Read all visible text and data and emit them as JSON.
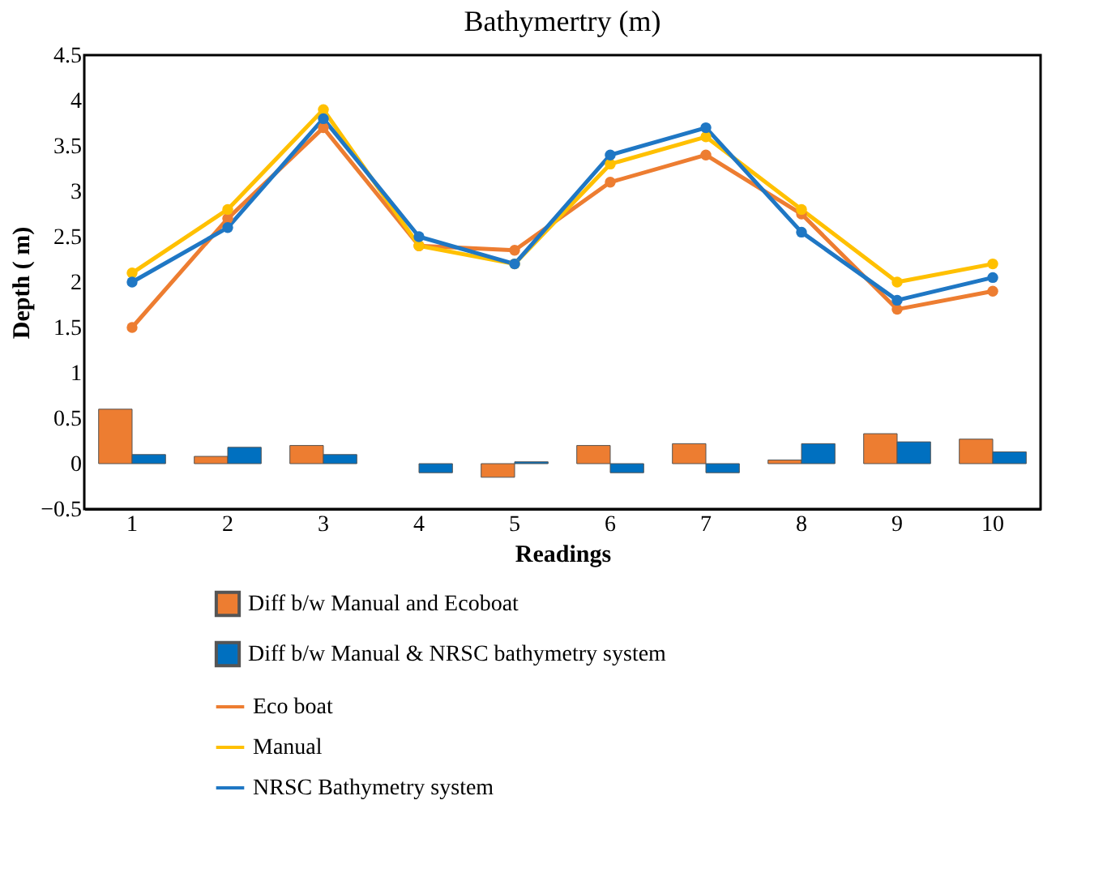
{
  "chart_data": {
    "type": "bar",
    "title": "Bathymertry (m)",
    "xlabel": "Readings",
    "ylabel": "Depth ( m)",
    "categories": [
      "1",
      "2",
      "3",
      "4",
      "5",
      "6",
      "7",
      "8",
      "9",
      "10"
    ],
    "series": [
      {
        "name": "Diff b/w Manual and Ecoboat",
        "color": "#ed7d31",
        "values": [
          0.6,
          0.08,
          0.2,
          null,
          -0.15,
          0.2,
          0.22,
          0.04,
          0.33,
          0.27
        ]
      },
      {
        "name": "Diff b/w Manual & NRSC bathymetry system",
        "color": "#0070c0",
        "values": [
          0.1,
          0.18,
          0.1,
          -0.1,
          0.02,
          -0.1,
          -0.1,
          0.22,
          0.24,
          0.13
        ]
      },
      {
        "name": "Eco boat",
        "type": "line",
        "color": "#ed7d31",
        "values": [
          1.5,
          2.7,
          3.7,
          2.4,
          2.35,
          3.1,
          3.4,
          2.75,
          1.7,
          1.9
        ]
      },
      {
        "name": "Manual",
        "type": "line",
        "color": "#ffc000",
        "values": [
          2.1,
          2.8,
          3.9,
          2.4,
          2.2,
          3.3,
          3.6,
          2.8,
          2.0,
          2.2
        ]
      },
      {
        "name": "NRSC Bathymetry system",
        "type": "line",
        "color": "#1f77c4",
        "values": [
          2.0,
          2.6,
          3.8,
          2.5,
          2.2,
          3.4,
          3.7,
          2.55,
          1.8,
          2.05
        ]
      }
    ],
    "ylim": [
      -0.5,
      4.5
    ],
    "yticks": [
      -0.5,
      0,
      0.5,
      1,
      1.5,
      2,
      2.5,
      3,
      3.5,
      4,
      4.5
    ],
    "grid": false,
    "legend": "bottom",
    "marker": "circle",
    "line_style": "solid"
  }
}
